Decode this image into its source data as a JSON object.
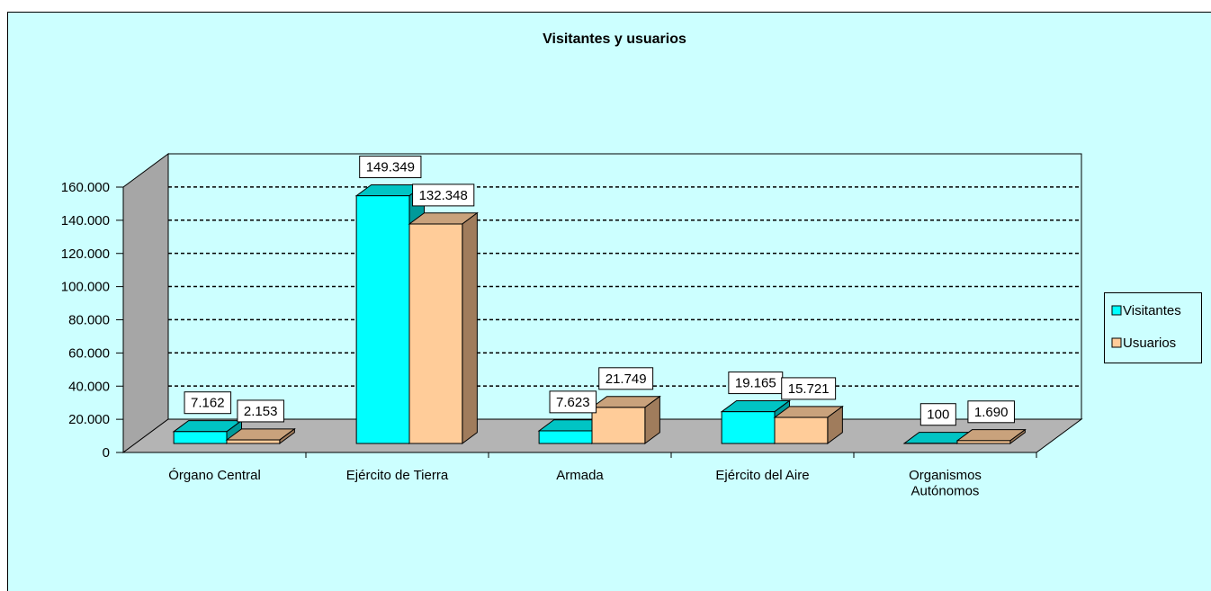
{
  "chart_data": {
    "type": "bar3d",
    "title": "Visitantes y usuarios",
    "categories": [
      "Órgano Central",
      "Ejército de Tierra",
      "Armada",
      "Ejército del Aire",
      "Organismos\nAutónomos"
    ],
    "series": [
      {
        "name": "Visitantes",
        "color": "#00ffff",
        "values": [
          7162,
          149349,
          7623,
          19165,
          100
        ],
        "value_labels": [
          "7.162",
          "149.349",
          "7.623",
          "19.165",
          "100"
        ]
      },
      {
        "name": "Usuarios",
        "color": "#ffcc99",
        "values": [
          2153,
          132348,
          21749,
          15721,
          1690
        ],
        "value_labels": [
          "2.153",
          "132.348",
          "21.749",
          "15.721",
          "1.690"
        ]
      }
    ],
    "ylim": [
      0,
      160000
    ],
    "yticks": [
      0,
      {
        "value": 20000,
        "label": "20.000"
      },
      {
        "value": 40000,
        "label": "40.000"
      },
      {
        "value": 60000,
        "label": "60.000"
      },
      {
        "value": 80000,
        "label": "80.000"
      },
      {
        "value": 100000,
        "label": "100.000"
      },
      {
        "value": 120000,
        "label": "120.000"
      },
      {
        "value": 140000,
        "label": "140.000"
      },
      {
        "value": 160000,
        "label": "160.000"
      }
    ],
    "grid": true,
    "legend": "right"
  }
}
